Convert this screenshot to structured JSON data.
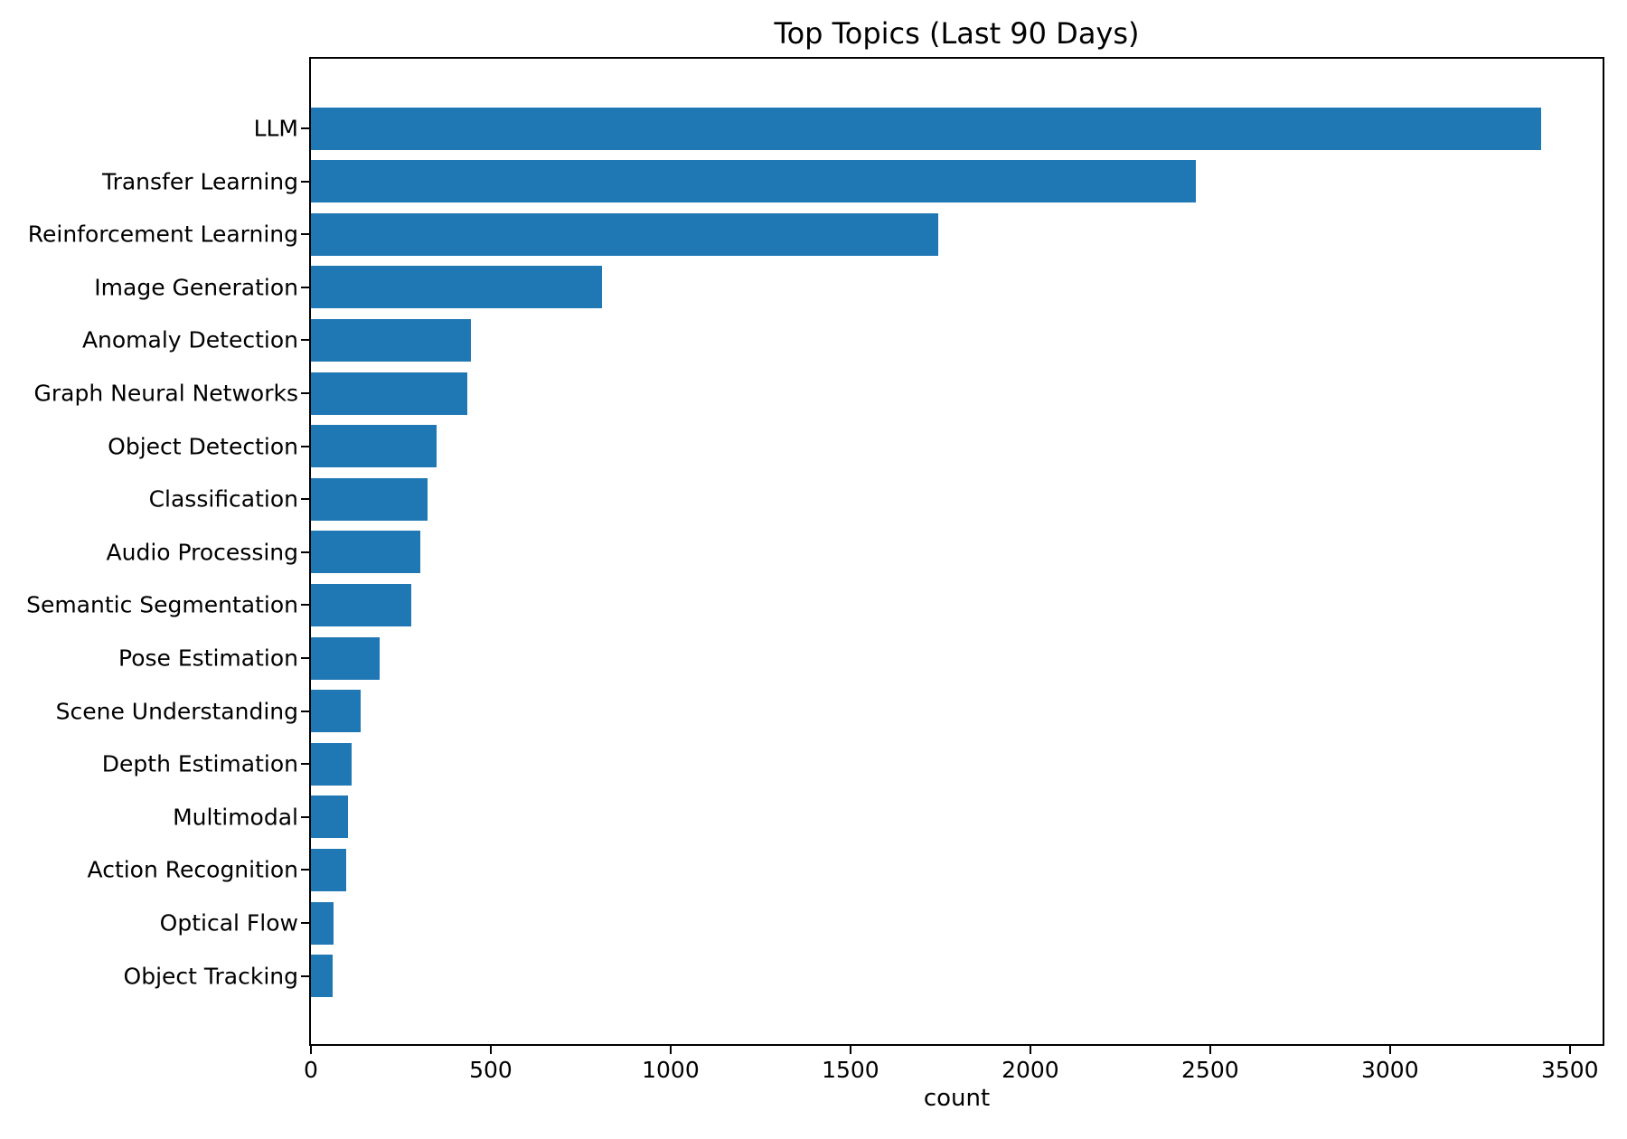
{
  "chart_data": {
    "type": "bar",
    "orientation": "horizontal",
    "title": "Top Topics (Last 90 Days)",
    "xlabel": "count",
    "ylabel": "",
    "categories": [
      "LLM",
      "Transfer Learning",
      "Reinforcement Learning",
      "Image Generation",
      "Anomaly Detection",
      "Graph Neural Networks",
      "Object Detection",
      "Classification",
      "Audio Processing",
      "Semantic Segmentation",
      "Pose Estimation",
      "Scene Understanding",
      "Depth Estimation",
      "Multimodal",
      "Action Recognition",
      "Optical Flow",
      "Object Tracking"
    ],
    "values": [
      3420,
      2460,
      1745,
      810,
      445,
      435,
      350,
      325,
      305,
      280,
      190,
      138,
      113,
      103,
      98,
      63,
      60
    ],
    "xticks": [
      0,
      500,
      1000,
      1500,
      2000,
      2500,
      3000,
      3500
    ],
    "xlim": [
      0,
      3591
    ],
    "grid": false,
    "legend": null,
    "bar_color": "#1f77b4",
    "background_color": "#ffffff",
    "text_color": "#000000"
  }
}
